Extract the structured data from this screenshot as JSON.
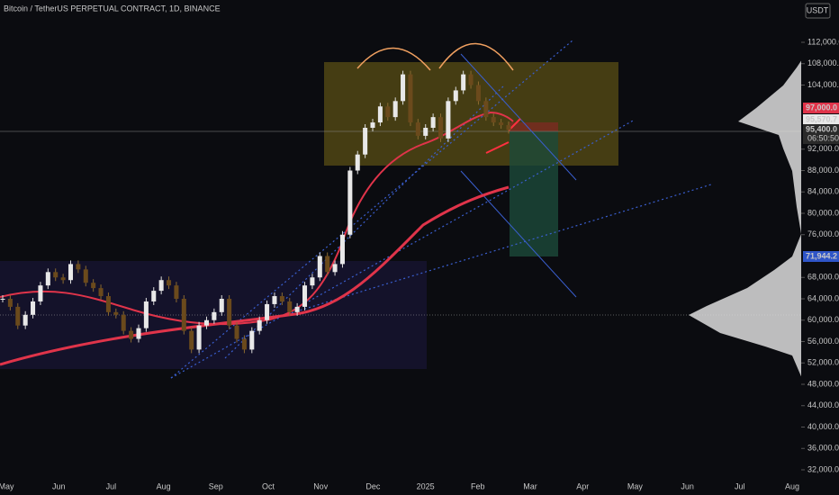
{
  "header": {
    "title": "Bitcoin / TetherUS PERPETUAL CONTRACT, 1D, BINANCE",
    "currency": "USDT"
  },
  "price_scale": {
    "ylim": [
      27284,
      119916
    ],
    "ticks": [
      {
        "value": 32000,
        "label": "32,000.0"
      },
      {
        "value": 36000,
        "label": "36,000.0"
      },
      {
        "value": 40000,
        "label": "40,000.0"
      },
      {
        "value": 44000,
        "label": "44,000.0"
      },
      {
        "value": 48000,
        "label": "48,000.0"
      },
      {
        "value": 52000,
        "label": "52,000.0"
      },
      {
        "value": 56000,
        "label": "56,000.0"
      },
      {
        "value": 60000,
        "label": "60,000.0"
      },
      {
        "value": 64000,
        "label": "64,000.0"
      },
      {
        "value": 68000,
        "label": "68,000.0"
      },
      {
        "value": 76000,
        "label": "76,000.0"
      },
      {
        "value": 80000,
        "label": "80,000.0"
      },
      {
        "value": 84000,
        "label": "84,000.0"
      },
      {
        "value": 88000,
        "label": "88,000.0"
      },
      {
        "value": 92000,
        "label": "92,000.0"
      },
      {
        "value": 104000,
        "label": "104,000.0"
      },
      {
        "value": 108000,
        "label": "108,000.0"
      },
      {
        "value": 112000,
        "label": "112,000.0"
      }
    ]
  },
  "price_tags": [
    {
      "value": 97000,
      "label": "97,000.0"
    },
    {
      "value": 95570.7,
      "label": "95,570.7"
    },
    {
      "value": 95400,
      "label": "95,400.0"
    },
    {
      "value": 71944.2,
      "label": "71,944.2"
    }
  ],
  "countdown": "06:50:50",
  "time_axis": [
    "May",
    "Jun",
    "Jul",
    "Aug",
    "Sep",
    "Oct",
    "Nov",
    "Dec",
    "2025",
    "Feb",
    "Mar",
    "Apr",
    "May",
    "Jun",
    "Jul",
    "Aug"
  ],
  "closes": [
    64000,
    62500,
    59000,
    61000,
    63500,
    66500,
    69000,
    68000,
    67500,
    70500,
    69500,
    67000,
    66000,
    64500,
    61500,
    61000,
    58000,
    56500,
    58500,
    63500,
    65500,
    67500,
    66500,
    64000,
    58000,
    54500,
    59000,
    60000,
    61500,
    64000,
    59000,
    56500,
    54500,
    58000,
    60000,
    63000,
    64500,
    63500,
    61500,
    62500,
    66500,
    68000,
    72000,
    69000,
    70500,
    76000,
    88000,
    91000,
    96000,
    97000,
    100000,
    98000,
    101000,
    106000,
    97000,
    94500,
    96000,
    98000,
    94000,
    101000,
    103000,
    106000,
    104000,
    101000,
    98000,
    97000,
    96500,
    95600
  ]
}
